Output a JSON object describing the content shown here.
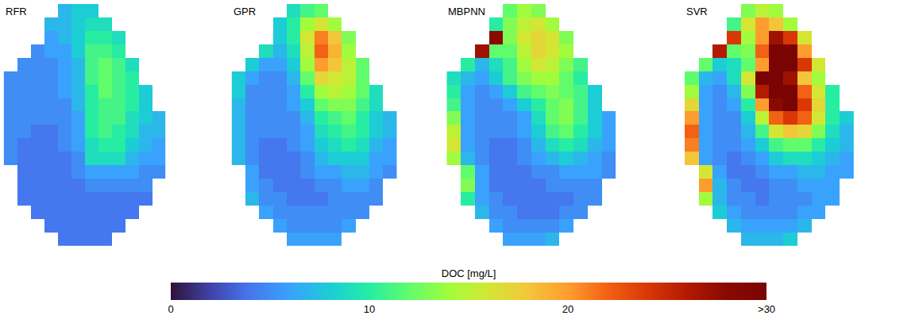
{
  "chart_data": [
    {
      "type": "heatmap",
      "title": "RFR",
      "z": [
        [
          null,
          null,
          null,
          null,
          7,
          8,
          8,
          null,
          null,
          null,
          null,
          null
        ],
        [
          null,
          null,
          null,
          7,
          7,
          8,
          9,
          9,
          null,
          null,
          null,
          null
        ],
        [
          null,
          null,
          null,
          6,
          7,
          8,
          10,
          10,
          9,
          null,
          null,
          null
        ],
        [
          null,
          null,
          5,
          6,
          6,
          8,
          11,
          11,
          10,
          null,
          null,
          null
        ],
        [
          null,
          5,
          5,
          5,
          6,
          7,
          11,
          12,
          11,
          9,
          null,
          null
        ],
        [
          5,
          5,
          5,
          5,
          6,
          7,
          11,
          12,
          11,
          10,
          null,
          null
        ],
        [
          5,
          5,
          5,
          5,
          6,
          7,
          10,
          12,
          11,
          10,
          8,
          null
        ],
        [
          5,
          5,
          5,
          5,
          5,
          7,
          10,
          11,
          11,
          10,
          8,
          null
        ],
        [
          5,
          5,
          5,
          5,
          5,
          6,
          10,
          11,
          11,
          9,
          8,
          7
        ],
        [
          5,
          5,
          4,
          4,
          5,
          6,
          10,
          11,
          10,
          9,
          7,
          7
        ],
        [
          5,
          4,
          4,
          4,
          5,
          6,
          9,
          10,
          10,
          8,
          7,
          6
        ],
        [
          5,
          4,
          4,
          4,
          4,
          5,
          9,
          9,
          9,
          7,
          6,
          6
        ],
        [
          null,
          4,
          4,
          4,
          4,
          5,
          6,
          6,
          6,
          6,
          5,
          5
        ],
        [
          null,
          4,
          4,
          4,
          4,
          4,
          5,
          5,
          5,
          5,
          5,
          null
        ],
        [
          null,
          4,
          4,
          4,
          4,
          4,
          4,
          4,
          4,
          4,
          4,
          null
        ],
        [
          null,
          null,
          4,
          4,
          4,
          4,
          4,
          4,
          4,
          4,
          null,
          null
        ],
        [
          null,
          null,
          null,
          4,
          4,
          4,
          4,
          4,
          4,
          null,
          null,
          null
        ],
        [
          null,
          null,
          null,
          null,
          4,
          4,
          4,
          4,
          null,
          null,
          null,
          null
        ]
      ]
    },
    {
      "type": "heatmap",
      "title": "GPR",
      "z": [
        [
          null,
          null,
          null,
          null,
          9,
          11,
          12,
          null,
          null,
          null,
          null,
          null
        ],
        [
          null,
          null,
          null,
          8,
          10,
          14,
          16,
          14,
          null,
          null,
          null,
          null
        ],
        [
          null,
          null,
          null,
          8,
          10,
          16,
          21,
          18,
          13,
          null,
          null,
          null
        ],
        [
          null,
          null,
          9,
          7,
          9,
          15,
          22,
          19,
          14,
          null,
          null,
          null
        ],
        [
          null,
          8,
          6,
          6,
          8,
          14,
          20,
          18,
          15,
          12,
          null,
          null
        ],
        [
          8,
          6,
          5,
          5,
          7,
          12,
          17,
          16,
          15,
          12,
          null,
          null
        ],
        [
          8,
          5,
          5,
          5,
          6,
          10,
          14,
          15,
          14,
          12,
          9,
          null
        ],
        [
          7,
          5,
          5,
          5,
          6,
          8,
          12,
          13,
          13,
          11,
          9,
          null
        ],
        [
          7,
          5,
          5,
          5,
          5,
          7,
          10,
          11,
          12,
          10,
          8,
          7
        ],
        [
          7,
          5,
          5,
          5,
          5,
          6,
          9,
          10,
          11,
          10,
          8,
          7
        ],
        [
          7,
          5,
          4,
          4,
          5,
          6,
          8,
          9,
          10,
          9,
          7,
          6
        ],
        [
          7,
          5,
          4,
          4,
          4,
          5,
          7,
          8,
          8,
          8,
          6,
          6
        ],
        [
          null,
          6,
          4,
          4,
          4,
          5,
          6,
          6,
          7,
          7,
          6,
          5
        ],
        [
          null,
          6,
          5,
          4,
          4,
          4,
          5,
          5,
          6,
          6,
          5,
          null
        ],
        [
          null,
          7,
          5,
          5,
          4,
          4,
          4,
          5,
          5,
          5,
          5,
          null
        ],
        [
          null,
          null,
          6,
          5,
          5,
          5,
          5,
          5,
          5,
          5,
          null,
          null
        ],
        [
          null,
          null,
          null,
          6,
          5,
          5,
          5,
          5,
          6,
          null,
          null,
          null
        ],
        [
          null,
          null,
          null,
          null,
          6,
          6,
          6,
          6,
          null,
          null,
          null,
          null
        ]
      ]
    },
    {
      "type": "heatmap",
      "title": "MBPNN",
      "z": [
        [
          null,
          null,
          null,
          null,
          12,
          14,
          13,
          null,
          null,
          null,
          null,
          null
        ],
        [
          null,
          null,
          null,
          10,
          13,
          15,
          16,
          14,
          null,
          null,
          null,
          null
        ],
        [
          null,
          null,
          null,
          28,
          13,
          16,
          17,
          16,
          13,
          null,
          null,
          null
        ],
        [
          null,
          null,
          27,
          12,
          12,
          15,
          17,
          16,
          14,
          null,
          null,
          null
        ],
        [
          null,
          10,
          7,
          9,
          11,
          14,
          16,
          15,
          13,
          11,
          null,
          null
        ],
        [
          9,
          7,
          6,
          8,
          11,
          13,
          14,
          14,
          12,
          10,
          null,
          null
        ],
        [
          10,
          6,
          5,
          6,
          8,
          11,
          12,
          13,
          12,
          11,
          8,
          null
        ],
        [
          11,
          6,
          5,
          5,
          6,
          8,
          10,
          12,
          13,
          11,
          8,
          null
        ],
        [
          13,
          6,
          5,
          5,
          5,
          6,
          9,
          12,
          13,
          11,
          8,
          6
        ],
        [
          15,
          6,
          5,
          5,
          5,
          6,
          8,
          11,
          12,
          10,
          8,
          6
        ],
        [
          16,
          6,
          5,
          4,
          4,
          5,
          7,
          9,
          10,
          9,
          7,
          6
        ],
        [
          14,
          7,
          5,
          4,
          4,
          5,
          6,
          7,
          8,
          7,
          6,
          5
        ],
        [
          null,
          12,
          6,
          4,
          4,
          4,
          5,
          5,
          6,
          6,
          6,
          5
        ],
        [
          null,
          13,
          6,
          4,
          4,
          4,
          4,
          5,
          5,
          5,
          5,
          null
        ],
        [
          null,
          10,
          6,
          5,
          4,
          4,
          4,
          4,
          4,
          5,
          5,
          null
        ],
        [
          null,
          null,
          7,
          5,
          5,
          4,
          4,
          4,
          5,
          5,
          null,
          null
        ],
        [
          null,
          null,
          null,
          6,
          5,
          5,
          5,
          5,
          6,
          null,
          null,
          null
        ],
        [
          null,
          null,
          null,
          null,
          6,
          6,
          6,
          7,
          null,
          null,
          null,
          null
        ]
      ]
    },
    {
      "type": "heatmap",
      "title": "SVR",
      "z": [
        [
          null,
          null,
          null,
          null,
          13,
          15,
          14,
          null,
          null,
          null,
          null,
          null
        ],
        [
          null,
          null,
          null,
          11,
          16,
          20,
          18,
          14,
          null,
          null,
          null,
          null
        ],
        [
          null,
          null,
          null,
          24,
          14,
          20,
          27,
          24,
          16,
          null,
          null,
          null
        ],
        [
          null,
          null,
          26,
          12,
          13,
          22,
          33,
          30,
          20,
          null,
          null,
          null
        ],
        [
          null,
          12,
          8,
          9,
          12,
          20,
          34,
          33,
          24,
          16,
          null,
          null
        ],
        [
          12,
          7,
          6,
          9,
          16,
          32,
          34,
          27,
          18,
          14,
          null,
          null
        ],
        [
          14,
          6,
          5,
          7,
          13,
          26,
          33,
          30,
          22,
          16,
          10,
          null
        ],
        [
          17,
          6,
          5,
          6,
          10,
          20,
          28,
          31,
          24,
          17,
          10,
          null
        ],
        [
          20,
          6,
          5,
          5,
          8,
          15,
          22,
          24,
          22,
          16,
          10,
          8
        ],
        [
          22,
          6,
          5,
          5,
          7,
          11,
          16,
          18,
          17,
          13,
          9,
          7
        ],
        [
          21,
          6,
          5,
          5,
          6,
          8,
          11,
          12,
          12,
          10,
          8,
          7
        ],
        [
          18,
          6,
          5,
          4,
          5,
          6,
          8,
          9,
          9,
          8,
          7,
          6
        ],
        [
          null,
          16,
          6,
          4,
          4,
          5,
          6,
          6,
          7,
          7,
          6,
          6
        ],
        [
          null,
          20,
          7,
          5,
          4,
          4,
          5,
          5,
          6,
          6,
          6,
          null
        ],
        [
          null,
          14,
          7,
          5,
          5,
          4,
          5,
          5,
          5,
          6,
          6,
          null
        ],
        [
          null,
          null,
          8,
          6,
          5,
          5,
          5,
          5,
          6,
          6,
          null,
          null
        ],
        [
          null,
          null,
          null,
          7,
          6,
          6,
          6,
          6,
          7,
          null,
          null,
          null
        ],
        [
          null,
          null,
          null,
          null,
          7,
          7,
          7,
          8,
          null,
          null,
          null,
          null
        ]
      ]
    }
  ],
  "colorbar": {
    "title": "DOC [mg/L]",
    "zlim": [
      0,
      30
    ],
    "zticks": [
      0,
      10,
      20,
      {
        "value": 30,
        "label": ">30"
      }
    ]
  }
}
